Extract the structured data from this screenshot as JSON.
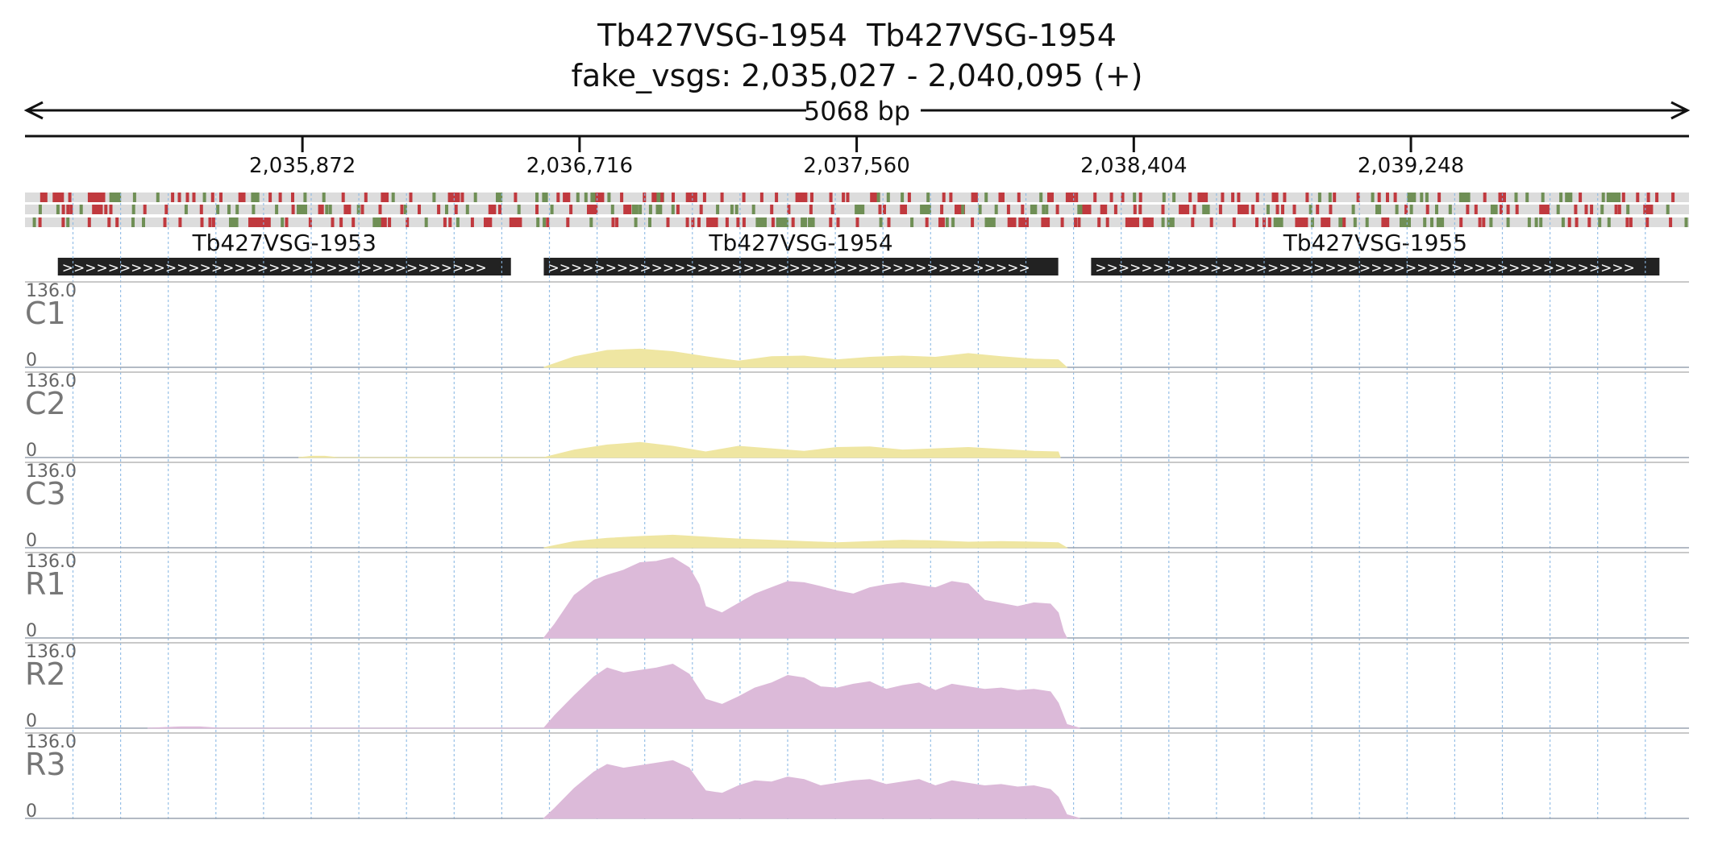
{
  "header": {
    "title": "Tb427VSG-1954  Tb427VSG-1954",
    "region": "fake_vsgs: 2,035,027 - 2,040,095 (+)",
    "span_label": "5068 bp"
  },
  "ruler": {
    "ticks": [
      "2,035,872",
      "2,036,716",
      "2,037,560",
      "2,038,404",
      "2,039,248"
    ]
  },
  "genes": [
    {
      "name": "Tb427VSG-1953",
      "start": 2035127,
      "end": 2036507,
      "strand": "+"
    },
    {
      "name": "Tb427VSG-1954",
      "start": 2036607,
      "end": 2038174,
      "strand": "+"
    },
    {
      "name": "Tb427VSG-1955",
      "start": 2038274,
      "end": 2040005,
      "strand": "+"
    }
  ],
  "colors": {
    "coverage_c": "#efe6a2",
    "coverage_r": "#dcbad9",
    "start_codon": "#6f8f55",
    "stop_codon": "#c0393e",
    "frame_bg": "#dcdcdc",
    "gene_block": "#222222",
    "gridline": "#8bb9e4"
  },
  "chart_data": {
    "type": "area",
    "x_range": [
      2035027,
      2040095
    ],
    "ylim": [
      0,
      136.0
    ],
    "y_max_label": "136.0",
    "y_min_label": "0",
    "tracks": [
      {
        "name": "C1",
        "color": "coverage_c",
        "x": [
          2036607,
          2036700,
          2036800,
          2036900,
          2037000,
          2037100,
          2037200,
          2037300,
          2037400,
          2037500,
          2037600,
          2037700,
          2037800,
          2037900,
          2038000,
          2038100,
          2038174,
          2038200
        ],
        "y": [
          0,
          17,
          27,
          29,
          25,
          17,
          10,
          17,
          18,
          12,
          16,
          18,
          16,
          22,
          17,
          13,
          12,
          0
        ]
      },
      {
        "name": "C2",
        "color": "coverage_c",
        "x": [
          2035860,
          2035900,
          2035940,
          2035980,
          2036607,
          2036700,
          2036800,
          2036900,
          2037000,
          2037100,
          2037200,
          2037300,
          2037400,
          2037500,
          2037600,
          2037700,
          2037800,
          2037900,
          2038000,
          2038100,
          2038174,
          2038180
        ],
        "y": [
          0,
          2,
          2,
          0,
          0,
          12,
          20,
          24,
          18,
          9,
          18,
          14,
          10,
          16,
          17,
          12,
          14,
          16,
          13,
          10,
          9,
          0
        ]
      },
      {
        "name": "C3",
        "color": "coverage_c",
        "x": [
          2036607,
          2036700,
          2036800,
          2036900,
          2037000,
          2037100,
          2037200,
          2037300,
          2037400,
          2037500,
          2037600,
          2037700,
          2037800,
          2037900,
          2038000,
          2038100,
          2038174,
          2038200
        ],
        "y": [
          0,
          10,
          15,
          18,
          20,
          17,
          14,
          12,
          10,
          8,
          10,
          12,
          11,
          9,
          10,
          9,
          8,
          0
        ]
      },
      {
        "name": "R1",
        "color": "coverage_r",
        "x": [
          2036607,
          2036640,
          2036700,
          2036760,
          2036800,
          2036850,
          2036900,
          2036950,
          2037000,
          2037050,
          2037080,
          2037100,
          2037150,
          2037200,
          2037250,
          2037300,
          2037350,
          2037400,
          2037450,
          2037500,
          2037550,
          2037600,
          2037650,
          2037700,
          2037750,
          2037800,
          2037850,
          2037900,
          2037950,
          2038000,
          2038050,
          2038100,
          2038150,
          2038174,
          2038190,
          2038200
        ],
        "y": [
          0,
          22,
          68,
          92,
          100,
          108,
          120,
          122,
          128,
          112,
          85,
          50,
          40,
          55,
          70,
          80,
          90,
          88,
          82,
          75,
          70,
          80,
          85,
          88,
          84,
          80,
          90,
          86,
          60,
          55,
          50,
          56,
          54,
          40,
          10,
          0
        ]
      },
      {
        "name": "R2",
        "color": "coverage_r",
        "x": [
          2035400,
          2035500,
          2035560,
          2035620,
          2036607,
          2036640,
          2036700,
          2036760,
          2036800,
          2036850,
          2036900,
          2036950,
          2037000,
          2037050,
          2037080,
          2037100,
          2037150,
          2037200,
          2037250,
          2037300,
          2037350,
          2037400,
          2037450,
          2037500,
          2037550,
          2037600,
          2037650,
          2037700,
          2037750,
          2037800,
          2037850,
          2037900,
          2037950,
          2038000,
          2038050,
          2038100,
          2038150,
          2038174,
          2038200,
          2038240
        ],
        "y": [
          0,
          2,
          2,
          0,
          0,
          20,
          52,
          82,
          96,
          88,
          92,
          96,
          102,
          86,
          62,
          46,
          38,
          50,
          64,
          72,
          84,
          80,
          66,
          64,
          70,
          74,
          62,
          68,
          72,
          60,
          70,
          66,
          62,
          64,
          60,
          62,
          58,
          40,
          6,
          0
        ]
      },
      {
        "name": "R3",
        "color": "coverage_r",
        "x": [
          2036607,
          2036640,
          2036700,
          2036760,
          2036800,
          2036850,
          2036900,
          2036950,
          2037000,
          2037050,
          2037080,
          2037100,
          2037150,
          2037200,
          2037250,
          2037300,
          2037350,
          2037400,
          2037450,
          2037500,
          2037550,
          2037600,
          2037650,
          2037700,
          2037750,
          2037800,
          2037850,
          2037900,
          2037950,
          2038000,
          2038050,
          2038100,
          2038150,
          2038174,
          2038200,
          2038240
        ],
        "y": [
          0,
          16,
          48,
          74,
          86,
          80,
          84,
          88,
          92,
          80,
          58,
          44,
          40,
          52,
          60,
          58,
          66,
          62,
          52,
          56,
          60,
          62,
          54,
          58,
          62,
          52,
          60,
          56,
          52,
          54,
          50,
          52,
          46,
          34,
          6,
          0
        ]
      }
    ]
  }
}
